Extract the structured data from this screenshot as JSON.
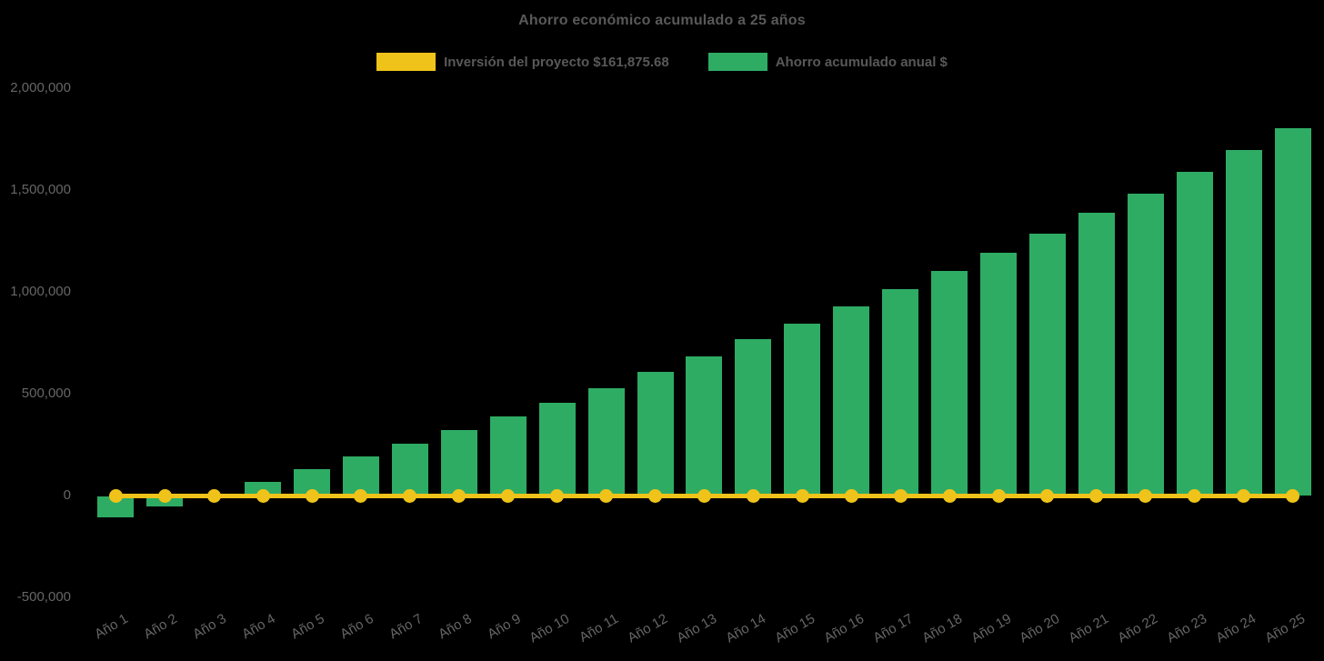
{
  "chart": {
    "title": "Ahorro económico acumulado a 25 años",
    "background_color": "#000000",
    "title_color": "#595959",
    "tick_color": "#666666"
  },
  "legend": {
    "items": [
      {
        "label": "Inversión del proyecto $161,875.68",
        "color": "#EFC319"
      },
      {
        "label": "Ahorro acumulado anual $",
        "color": "#2EAC64"
      }
    ]
  },
  "chart_data": {
    "type": "bar",
    "title": "Ahorro económico acumulado a 25 años",
    "categories": [
      "Año 1",
      "Año 2",
      "Año 3",
      "Año 4",
      "Año 5",
      "Año 6",
      "Año 7",
      "Año 8",
      "Año 9",
      "Año 10",
      "Año 11",
      "Año 12",
      "Año 13",
      "Año 14",
      "Año 15",
      "Año 16",
      "Año 17",
      "Año 18",
      "Año 19",
      "Año 20",
      "Año 21",
      "Año 22",
      "Año 23",
      "Año 24",
      "Año 25"
    ],
    "series": [
      {
        "name": "Inversión del proyecto $161,875.68",
        "type": "line",
        "color": "#EFC319",
        "marker": "circle",
        "values": [
          0,
          0,
          0,
          0,
          0,
          0,
          0,
          0,
          0,
          0,
          0,
          0,
          0,
          0,
          0,
          0,
          0,
          0,
          0,
          0,
          0,
          0,
          0,
          0,
          0
        ]
      },
      {
        "name": "Ahorro acumulado anual $",
        "type": "bar",
        "color": "#2EAC64",
        "values": [
          -104000,
          -49000,
          2000,
          66000,
          131000,
          193000,
          253000,
          323000,
          387000,
          457000,
          527000,
          606000,
          684000,
          766000,
          842000,
          927000,
          1012000,
          1101000,
          1193000,
          1287000,
          1387000,
          1483000,
          1588000,
          1696000,
          1805000
        ]
      }
    ],
    "y_axis": {
      "min": -500000,
      "max": 2000000,
      "tick_interval": 500000,
      "ticks": [
        {
          "label": "2,000,000",
          "value": 2000000
        },
        {
          "label": "1,500,000",
          "value": 1500000
        },
        {
          "label": "1,000,000",
          "value": 1000000
        },
        {
          "label": "500,000",
          "value": 500000
        },
        {
          "label": "0",
          "value": 0
        },
        {
          "label": "-500,000",
          "value": -500000
        }
      ]
    },
    "x_label_rotation_deg": -30,
    "grid": false,
    "legend_position": "top"
  }
}
